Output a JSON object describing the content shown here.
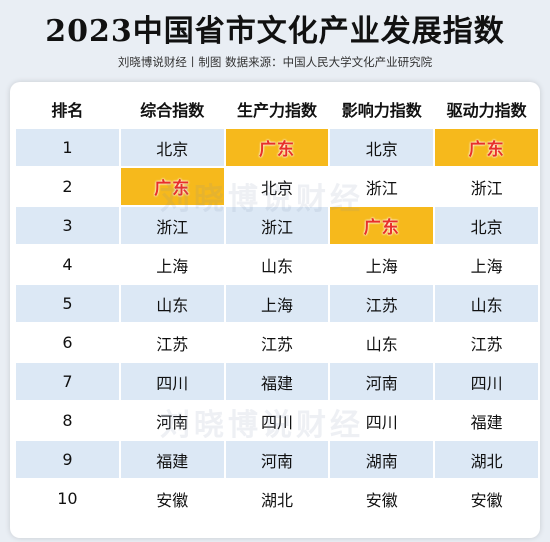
{
  "title": "2023中国省市文化产业发展指数",
  "subtitle": "刘晓博说财经丨制图    数据来源：中国人民大学文化产业研究院",
  "watermark": "刘晓博说财经",
  "headers": [
    "排名",
    "综合指数",
    "生产力指数",
    "影响力指数",
    "驱动力指数"
  ],
  "highlight": "广东",
  "colors": {
    "highlight_bg": "#f6b91c",
    "highlight_text": "#e8302a",
    "alt_row": "#dce8f5"
  },
  "rows": [
    [
      "1",
      "北京",
      "广东",
      "北京",
      "广东"
    ],
    [
      "2",
      "广东",
      "北京",
      "浙江",
      "浙江"
    ],
    [
      "3",
      "浙江",
      "浙江",
      "广东",
      "北京"
    ],
    [
      "4",
      "上海",
      "山东",
      "上海",
      "上海"
    ],
    [
      "5",
      "山东",
      "上海",
      "江苏",
      "山东"
    ],
    [
      "6",
      "江苏",
      "江苏",
      "山东",
      "江苏"
    ],
    [
      "7",
      "四川",
      "福建",
      "河南",
      "四川"
    ],
    [
      "8",
      "河南",
      "四川",
      "四川",
      "福建"
    ],
    [
      "9",
      "福建",
      "河南",
      "湖南",
      "湖北"
    ],
    [
      "10",
      "安徽",
      "湖北",
      "安徽",
      "安徽"
    ]
  ]
}
